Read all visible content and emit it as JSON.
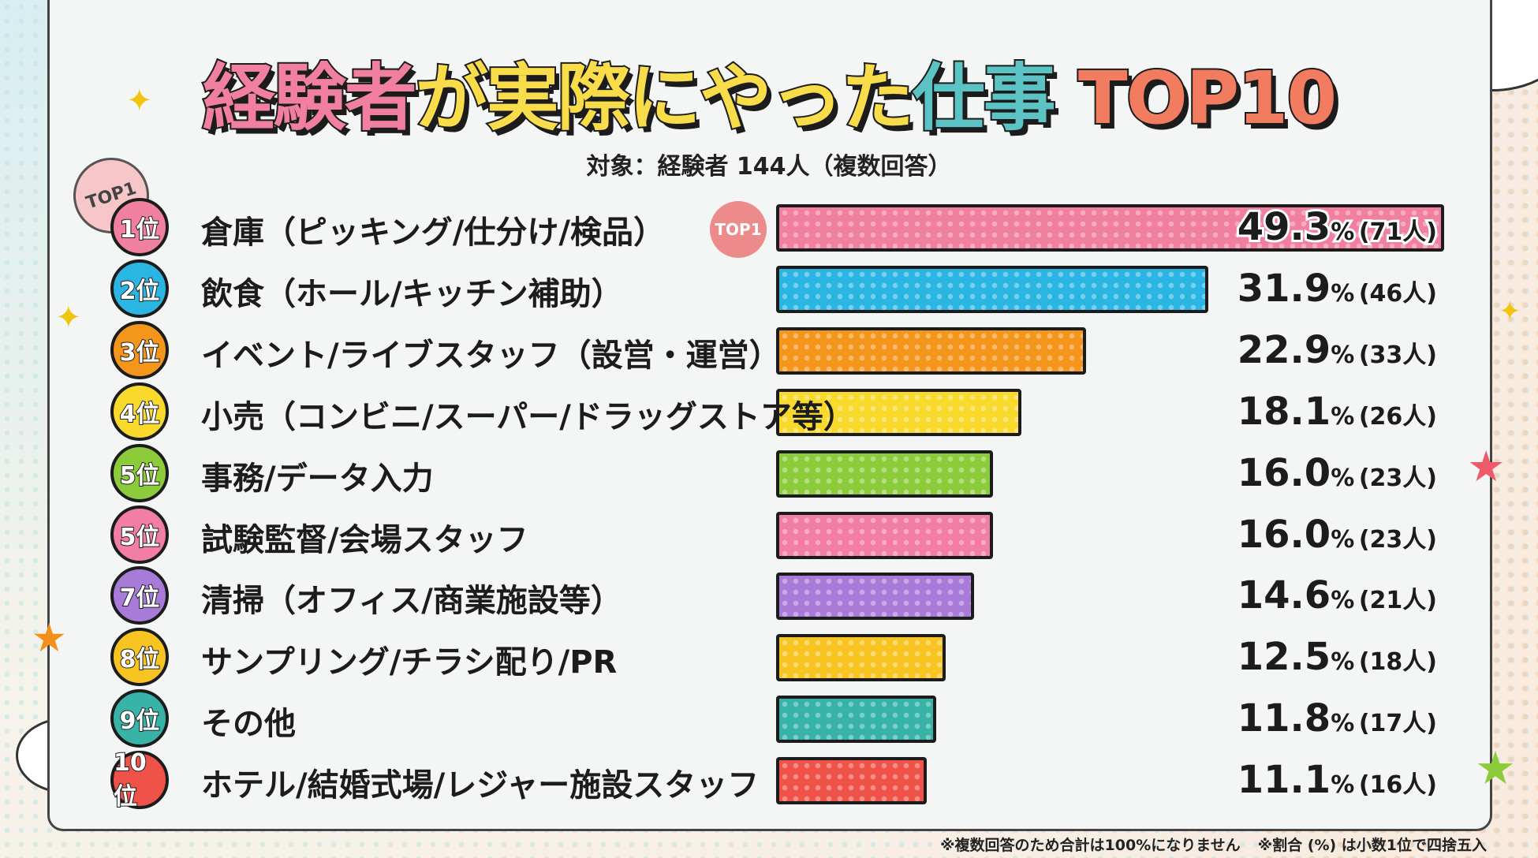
{
  "title": {
    "parts": [
      {
        "text": "経験者",
        "color": "#f07fa0"
      },
      {
        "text": "が実際にやった",
        "color": "#f8dc4a"
      },
      {
        "text": "仕事",
        "color": "#5cc3c5"
      },
      {
        "text": " TOP10",
        "color": "#f27c5f"
      }
    ]
  },
  "subtitle": "対象：経験者 144人（複数回答）",
  "top1_tag": "TOP1",
  "top1_bubble": "TOP1",
  "footnotes": [
    "※複数回答のため合計は100%になりません",
    "※割合 (%) は小数1位で四捨五入"
  ],
  "chart_data": {
    "type": "bar",
    "orientation": "horizontal",
    "title": "経験者が実際にやった仕事 TOP10",
    "unit": "%",
    "categories": [
      "倉庫（ピッキング/仕分け/検品）",
      "飲食（ホール/キッチン補助）",
      "イベント/ライブスタッフ（設営・運営）",
      "小売（コンビニ/スーパー/ドラッグストア等）",
      "事務/データ入力",
      "試験監督/会場スタッフ",
      "清掃（オフィス/商業施設等）",
      "サンプリング/チラシ配り/PR",
      "その他",
      "ホテル/結婚式場/レジャー施設スタッフ"
    ],
    "ranks": [
      "1位",
      "2位",
      "3位",
      "4位",
      "5位",
      "5位",
      "7位",
      "8位",
      "9位",
      "10位"
    ],
    "values": [
      49.3,
      31.9,
      22.9,
      18.1,
      16.0,
      16.0,
      14.6,
      12.5,
      11.8,
      11.1
    ],
    "value_labels": [
      "49.3",
      "31.9",
      "22.9",
      "18.1",
      "16.0",
      "16.0",
      "14.6",
      "12.5",
      "11.8",
      "11.1"
    ],
    "counts": [
      "(71人)",
      "(46人)",
      "(33人)",
      "(26人)",
      "(23人)",
      "(23人)",
      "(21人)",
      "(18人)",
      "(17人)",
      "(16人)"
    ],
    "colors": [
      "#f07fa0",
      "#2bb5e3",
      "#f5961c",
      "#f8d92c",
      "#8ccc3a",
      "#f27ea5",
      "#a87bd9",
      "#f7c422",
      "#38b3a8",
      "#ef5248"
    ],
    "grid": false,
    "legend": "none"
  }
}
